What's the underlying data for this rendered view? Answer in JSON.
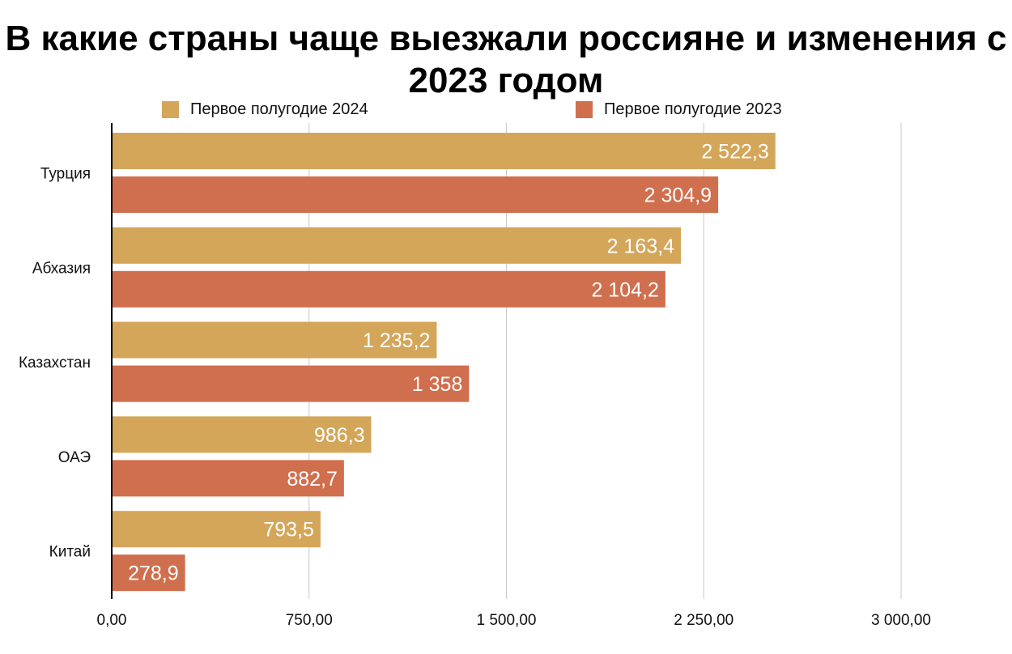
{
  "chart_data": {
    "type": "bar",
    "orientation": "horizontal",
    "title": "В какие страны чаще выезжали россияне и изменения с 2023 годом",
    "categories": [
      "Турция",
      "Абхазия",
      "Казахстан",
      "ОАЭ",
      "Китай"
    ],
    "series": [
      {
        "name": "Первое полугодие 2024",
        "color": "#D4A65A",
        "values": [
          2522.3,
          2163.4,
          1235.2,
          986.3,
          793.5
        ],
        "labels": [
          "2 522,3",
          "2 163,4",
          "1 235,2",
          "986,3",
          "793,5"
        ]
      },
      {
        "name": "Первое полугодие 2023",
        "color": "#D06F4E",
        "values": [
          2304.9,
          2104.2,
          1358,
          882.7,
          278.9
        ],
        "labels": [
          "2 304,9",
          "2 104,2",
          "1 358",
          "882,7",
          "278,9"
        ]
      }
    ],
    "xlim": [
      0,
      3000
    ],
    "xticks": [
      0,
      750,
      1500,
      2250,
      3000
    ],
    "xtick_labels": [
      "0,00",
      "750,00",
      "1 500,00",
      "2 250,00",
      "3 000,00"
    ],
    "grid": true,
    "legend": "top"
  }
}
